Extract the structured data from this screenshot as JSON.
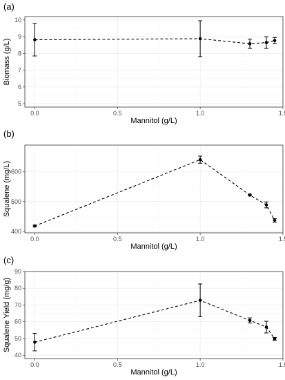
{
  "chart_data": [
    {
      "type": "line",
      "panel_label": "(a)",
      "xlabel": "Mannitol (g/L)",
      "ylabel": "Biomass (g/L)",
      "xlim": [
        -0.06,
        1.5
      ],
      "ylim": [
        4.8,
        10.2
      ],
      "x_ticks": [
        0.0,
        0.5,
        1.0,
        1.5
      ],
      "x_tick_labels": [
        "0.0",
        "0.5",
        "1.0",
        "1.5"
      ],
      "y_ticks": [
        5,
        6,
        7,
        8,
        9,
        10
      ],
      "y_tick_labels": [
        "5",
        "6",
        "7",
        "8",
        "9",
        "10"
      ],
      "grid": true,
      "x": [
        0.0,
        1.0,
        1.3,
        1.4,
        1.45
      ],
      "values": [
        8.82,
        8.88,
        8.58,
        8.65,
        8.77
      ],
      "errors": [
        0.97,
        1.07,
        0.28,
        0.35,
        0.18
      ]
    },
    {
      "type": "line",
      "panel_label": "(b)",
      "xlabel": "Mannitol (g/L)",
      "ylabel": "Squalene (mg/L)",
      "xlim": [
        -0.06,
        1.5
      ],
      "ylim": [
        395,
        690
      ],
      "x_ticks": [
        0.0,
        0.5,
        1.0,
        1.5
      ],
      "x_tick_labels": [
        "0.0",
        "0.5",
        "1.0",
        "1.5"
      ],
      "y_ticks": [
        400,
        500,
        600
      ],
      "y_tick_labels": [
        "400",
        "500",
        "600"
      ],
      "grid": true,
      "x": [
        0.0,
        1.0,
        1.3,
        1.4,
        1.45
      ],
      "values": [
        418,
        641,
        522,
        489,
        437
      ],
      "errors": [
        3,
        12,
        3,
        10,
        6
      ]
    },
    {
      "type": "line",
      "panel_label": "(c)",
      "xlabel": "Mannitol (g/L)",
      "ylabel": "Squalene Yield (mg/g)",
      "xlim": [
        -0.06,
        1.5
      ],
      "ylim": [
        38,
        90
      ],
      "x_ticks": [
        0.0,
        0.5,
        1.0,
        1.5
      ],
      "x_tick_labels": [
        "0.0",
        "0.5",
        "1.0",
        "1.5"
      ],
      "y_ticks": [
        40,
        50,
        60,
        70,
        80,
        90
      ],
      "y_tick_labels": [
        "40",
        "50",
        "60",
        "70",
        "80",
        "90"
      ],
      "grid": true,
      "x": [
        0.0,
        1.0,
        1.3,
        1.4,
        1.45
      ],
      "values": [
        47.8,
        72.8,
        60.8,
        56.8,
        49.8
      ],
      "errors": [
        5.2,
        9.8,
        1.5,
        3.5,
        0.8
      ]
    }
  ]
}
